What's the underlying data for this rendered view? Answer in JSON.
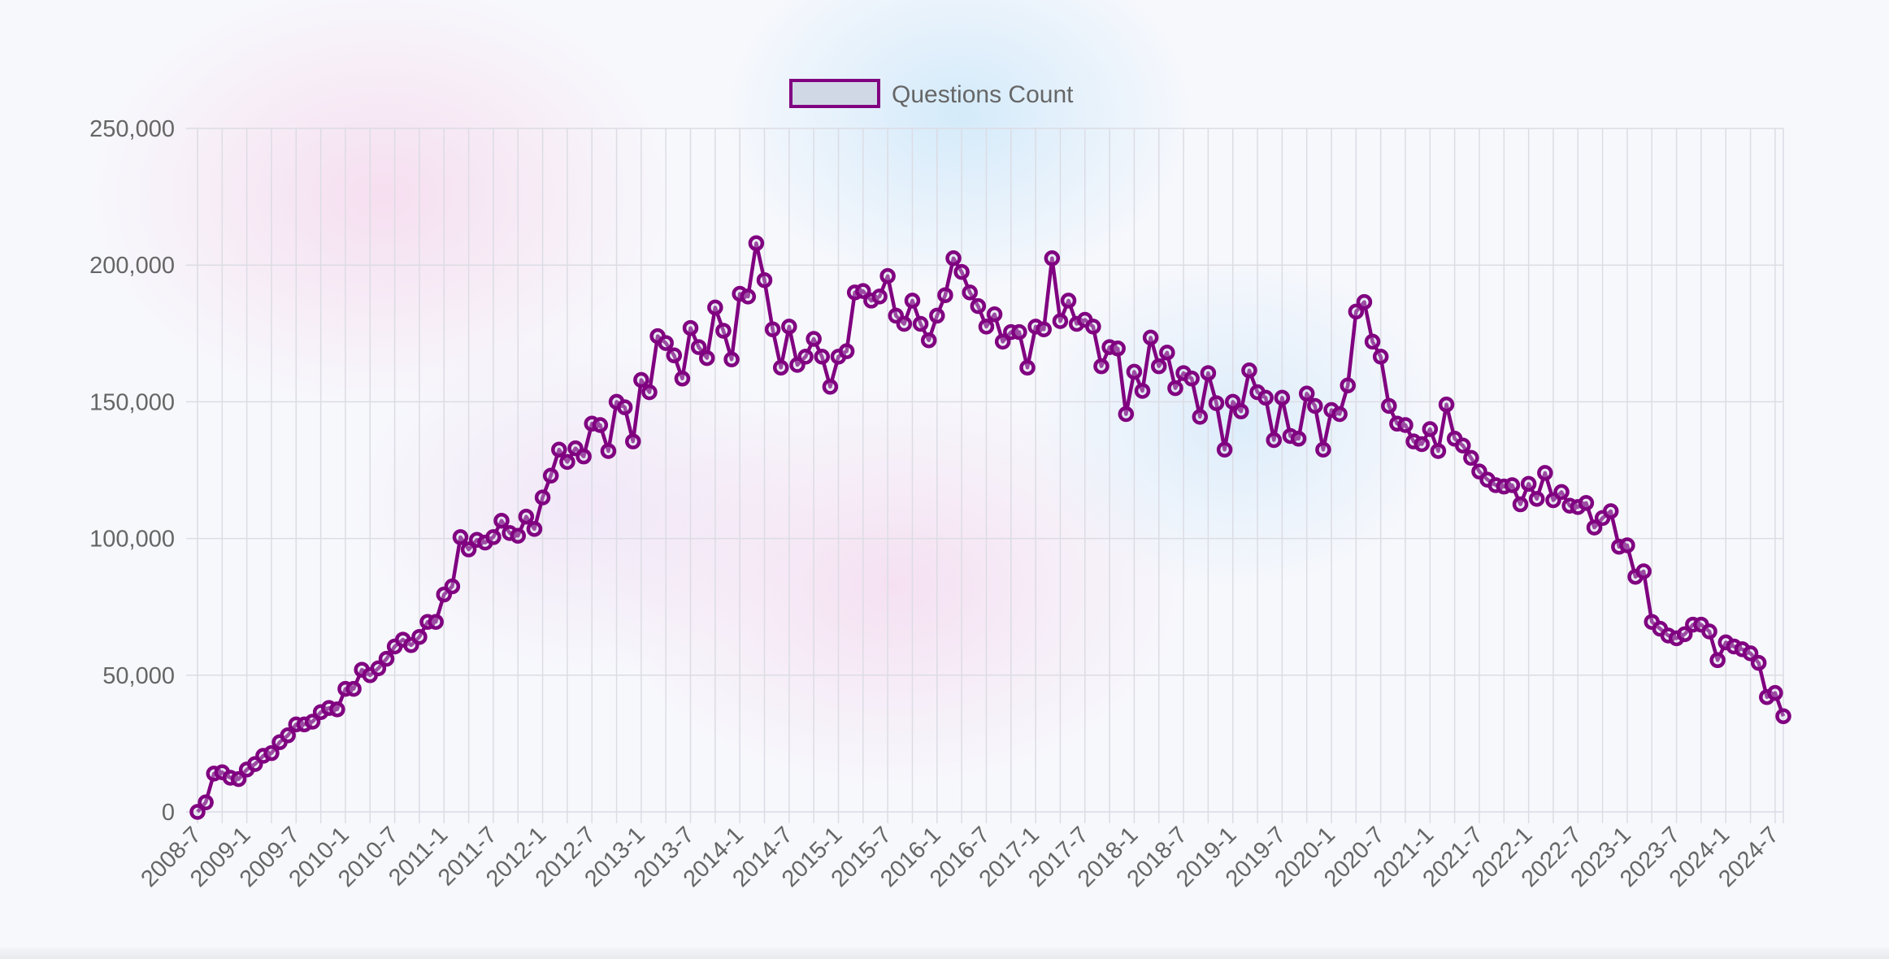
{
  "chart_data": {
    "type": "line",
    "title": "",
    "xlabel": "",
    "ylabel": "",
    "ylim": [
      0,
      250000
    ],
    "yticks": [
      "0",
      "50,000",
      "100,000",
      "150,000",
      "200,000",
      "250,000"
    ],
    "x_tick_labels": [
      "2008-7",
      "2009-1",
      "2009-7",
      "2010-1",
      "2010-7",
      "2011-1",
      "2011-7",
      "2012-1",
      "2012-7",
      "2013-1",
      "2013-7",
      "2014-1",
      "2014-7",
      "2015-1",
      "2015-7",
      "2016-1",
      "2016-7",
      "2017-1",
      "2017-7",
      "2018-1",
      "2018-7",
      "2019-1",
      "2019-7",
      "2020-1",
      "2020-7",
      "2021-1",
      "2021-7",
      "2022-1",
      "2022-7",
      "2023-1",
      "2023-7",
      "2024-1",
      "2024-7"
    ],
    "grid": true,
    "legend_position": "top-center",
    "colors": {
      "line": "#800080",
      "legend_fill": "#d0d8e6",
      "grid": "#dcdce4",
      "tick_text": "#666666"
    },
    "x_start": "2008-7",
    "x_step": "1 month",
    "series": [
      {
        "name": "Questions Count",
        "values": [
          0,
          3500,
          14000,
          14500,
          12500,
          12000,
          15500,
          17500,
          20500,
          21500,
          25500,
          28000,
          32000,
          32000,
          33000,
          36500,
          38000,
          37500,
          45000,
          45000,
          52000,
          50000,
          52500,
          56000,
          60500,
          63000,
          61000,
          64000,
          69500,
          69500,
          79500,
          82500,
          100500,
          96000,
          99500,
          98500,
          100500,
          106500,
          102000,
          101000,
          108000,
          103500,
          115000,
          123000,
          132500,
          128000,
          133000,
          130000,
          142000,
          141500,
          132000,
          150000,
          148000,
          135500,
          158000,
          153500,
          174000,
          171500,
          167000,
          158500,
          177000,
          170000,
          166000,
          184500,
          176000,
          165500,
          189500,
          188500,
          208000,
          194500,
          176500,
          162500,
          177500,
          163500,
          166500,
          173000,
          166500,
          155500,
          166500,
          168500,
          190000,
          190500,
          187000,
          188500,
          196000,
          181500,
          178500,
          187000,
          178500,
          172500,
          181500,
          189000,
          202500,
          197500,
          190000,
          185000,
          177500,
          182000,
          172000,
          175500,
          175500,
          162500,
          177500,
          176500,
          202500,
          179500,
          187000,
          178500,
          180000,
          177500,
          163000,
          170000,
          169500,
          145500,
          161000,
          154000,
          173500,
          163000,
          168000,
          155000,
          160500,
          158500,
          144500,
          160500,
          149500,
          132500,
          150000,
          146500,
          161500,
          153500,
          151500,
          136000,
          151500,
          137500,
          136500,
          153000,
          148500,
          132500,
          147000,
          145500,
          156000,
          183000,
          186500,
          172000,
          166500,
          148500,
          142000,
          141500,
          135500,
          134500,
          140000,
          132000,
          149000,
          136500,
          134000,
          129500,
          124500,
          121500,
          119500,
          119000,
          119500,
          112500,
          120000,
          114500,
          124000,
          114000,
          117000,
          112000,
          111500,
          113000,
          104000,
          107500,
          110000,
          97000,
          97500,
          86000,
          88000,
          69500,
          67000,
          64500,
          63500,
          65000,
          68500,
          68500,
          66000,
          55500,
          62000,
          60500,
          59500,
          58000,
          54500,
          42000,
          43500,
          35000
        ]
      }
    ]
  }
}
